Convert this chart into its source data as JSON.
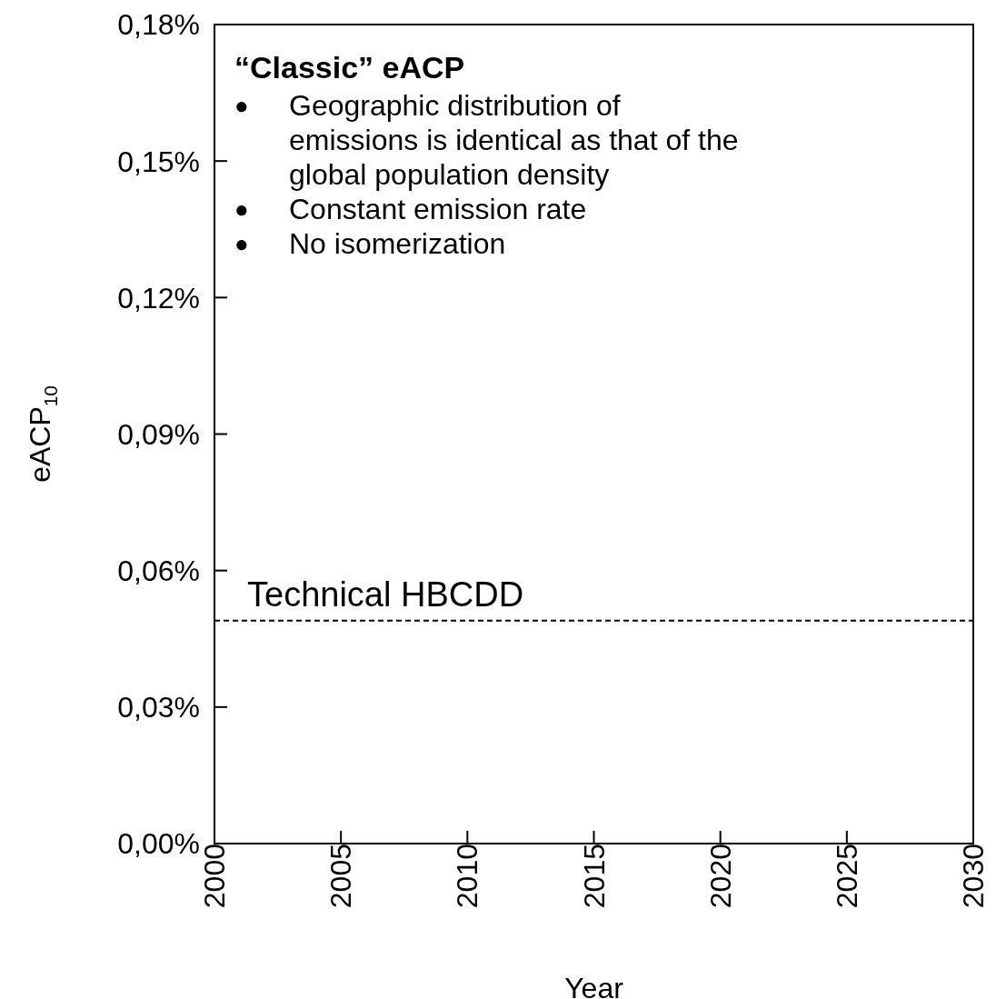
{
  "chart_data": {
    "type": "line",
    "ylabel": "eACP$_{10}$",
    "xlabel": "Year",
    "xlim": [
      2000,
      2030
    ],
    "xticks": [
      2000,
      2005,
      2010,
      2015,
      2020,
      2025,
      2030
    ],
    "ylim": [
      0,
      0.18
    ],
    "yticks": [
      {
        "value": 0,
        "label": "0,00%"
      },
      {
        "value": 0.03,
        "label": "0,03%"
      },
      {
        "value": 0.06,
        "label": "0,06%"
      },
      {
        "value": 0.09,
        "label": "0,09%"
      },
      {
        "value": 0.12,
        "label": "0,12%"
      },
      {
        "value": 0.15,
        "label": "0,15%"
      },
      {
        "value": 0.18,
        "label": "0,18%"
      }
    ],
    "ref_lines": [
      {
        "axis": "y",
        "value": 0.049,
        "label": "Technical HBCDD",
        "color": "#000000",
        "line_style": "dashed"
      }
    ],
    "annotations": [
      "“Classic” eACP",
      "● Geographic distribution of emissions is identical as that of the global population density",
      "● Constant emission rate",
      "● No isomerization"
    ],
    "grid": false
  }
}
